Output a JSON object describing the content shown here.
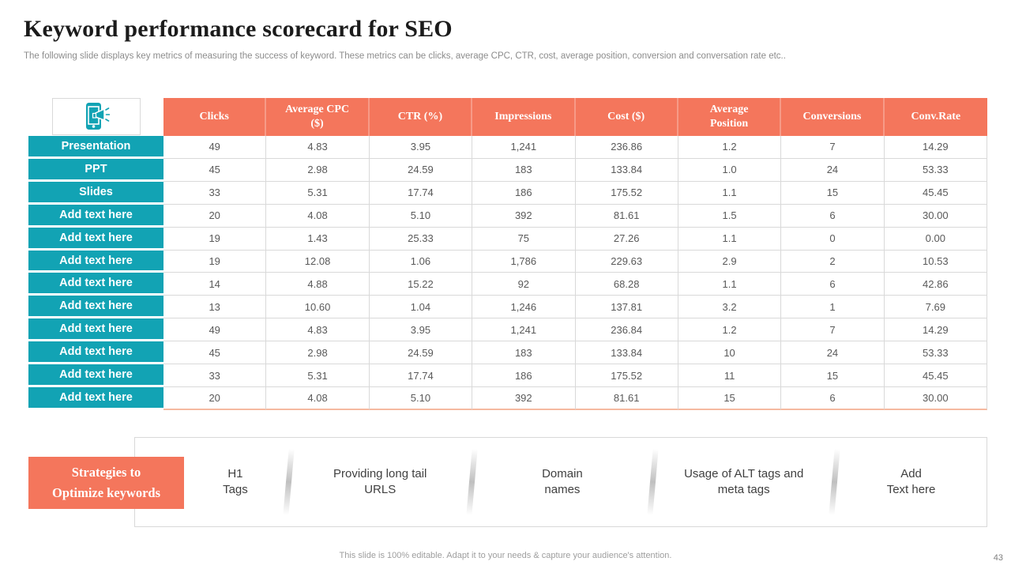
{
  "header": {
    "title": "Keyword performance scorecard for SEO",
    "subtitle": "The following slide displays key metrics of measuring the success of keyword. These metrics can be clicks, average CPC, CTR,  cost, average position, conversion and conversation rate etc.."
  },
  "table": {
    "corner_icon": "phone-megaphone-icon",
    "columns": [
      "Clicks",
      "Average CPC ($)",
      "CTR (%)",
      "Impressions",
      "Cost ($)",
      "Average Position",
      "Conversions",
      "Conv.Rate"
    ],
    "rows": [
      {
        "label": "Presentation",
        "values": [
          "49",
          "4.83",
          "3.95",
          "1,241",
          "236.86",
          "1.2",
          "7",
          "14.29"
        ]
      },
      {
        "label": "PPT",
        "values": [
          "45",
          "2.98",
          "24.59",
          "183",
          "133.84",
          "1.0",
          "24",
          "53.33"
        ]
      },
      {
        "label": "Slides",
        "values": [
          "33",
          "5.31",
          "17.74",
          "186",
          "175.52",
          "1.1",
          "15",
          "45.45"
        ]
      },
      {
        "label": "Add text here",
        "values": [
          "20",
          "4.08",
          "5.10",
          "392",
          "81.61",
          "1.5",
          "6",
          "30.00"
        ]
      },
      {
        "label": "Add text here",
        "values": [
          "19",
          "1.43",
          "25.33",
          "75",
          "27.26",
          "1.1",
          "0",
          "0.00"
        ]
      },
      {
        "label": "Add text here",
        "values": [
          "19",
          "12.08",
          "1.06",
          "1,786",
          "229.63",
          "2.9",
          "2",
          "10.53"
        ]
      },
      {
        "label": "Add text here",
        "values": [
          "14",
          "4.88",
          "15.22",
          "92",
          "68.28",
          "1.1",
          "6",
          "42.86"
        ]
      },
      {
        "label": "Add text here",
        "values": [
          "13",
          "10.60",
          "1.04",
          "1,246",
          "137.81",
          "3.2",
          "1",
          "7.69"
        ]
      },
      {
        "label": "Add text here",
        "values": [
          "49",
          "4.83",
          "3.95",
          "1,241",
          "236.84",
          "1.2",
          "7",
          "14.29"
        ]
      },
      {
        "label": "Add text here",
        "values": [
          "45",
          "2.98",
          "24.59",
          "183",
          "133.84",
          "10",
          "24",
          "53.33"
        ]
      },
      {
        "label": "Add text here",
        "values": [
          "33",
          "5.31",
          "17.74",
          "186",
          "175.52",
          "11",
          "15",
          "45.45"
        ]
      },
      {
        "label": "Add text here",
        "values": [
          "20",
          "4.08",
          "5.10",
          "392",
          "81.61",
          "15",
          "6",
          "30.00"
        ]
      }
    ]
  },
  "strategies": {
    "heading": "Strategies to\nOptimize keywords",
    "items": [
      "H1\nTags",
      "Providing long tail\nURLS",
      "Domain\nnames",
      "Usage of ALT tags and\nmeta tags",
      "Add\nText here"
    ]
  },
  "footer": {
    "note": "This slide is 100% editable. Adapt it to your needs & capture your audience's attention.",
    "page_number": "43"
  },
  "colors": {
    "accent_coral": "#F4765C",
    "accent_teal": "#12A3B4",
    "grid_line": "#D9D9D9"
  }
}
